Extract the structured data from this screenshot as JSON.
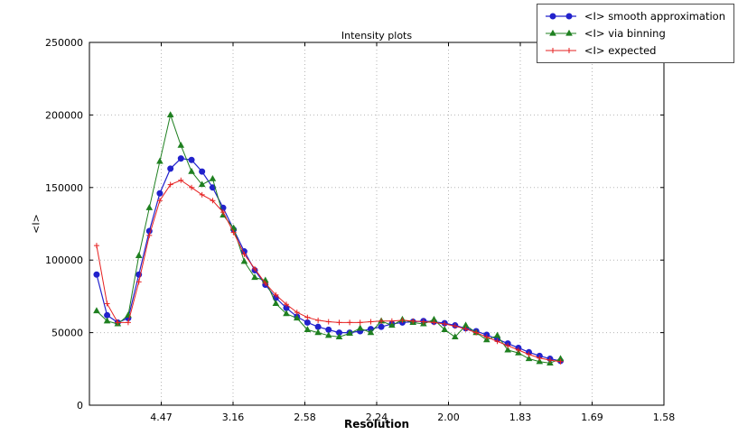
{
  "figure": {
    "title": "Intensity plots",
    "xlabel": "Resolution",
    "ylabel": "<I>"
  },
  "legend": {
    "entries": [
      {
        "label": "<I> smooth approximation"
      },
      {
        "label": "<I> via binning"
      },
      {
        "label": "<I> expected"
      }
    ]
  },
  "chart_data": {
    "type": "line",
    "title": "Intensity plots",
    "xlabel": "Resolution",
    "ylabel": "<I>",
    "grid": "dotted",
    "legend_position": "upper right, outside top of axes",
    "x_axis": {
      "note": "x is linear in 1/d^2; tick labels show resolution d in Angstrom",
      "range": [
        0,
        0.4
      ],
      "ticks": [
        {
          "pos": 0.05,
          "label": "4.47"
        },
        {
          "pos": 0.1,
          "label": "3.16"
        },
        {
          "pos": 0.15,
          "label": "2.58"
        },
        {
          "pos": 0.2,
          "label": "2.24"
        },
        {
          "pos": 0.25,
          "label": "2.00"
        },
        {
          "pos": 0.3,
          "label": "1.83"
        },
        {
          "pos": 0.35,
          "label": "1.69"
        },
        {
          "pos": 0.4,
          "label": "1.58"
        }
      ]
    },
    "y_axis": {
      "range": [
        0,
        250000
      ],
      "ticks": [
        {
          "value": 0,
          "label": "0"
        },
        {
          "value": 50000,
          "label": "50000"
        },
        {
          "value": 100000,
          "label": "100000"
        },
        {
          "value": 150000,
          "label": "150000"
        },
        {
          "value": 200000,
          "label": "200000"
        },
        {
          "value": 250000,
          "label": "250000"
        }
      ]
    },
    "x": [
      0.005,
      0.0123,
      0.0197,
      0.027,
      0.0344,
      0.0417,
      0.049,
      0.0564,
      0.0637,
      0.0711,
      0.0784,
      0.0858,
      0.0931,
      0.1004,
      0.1078,
      0.1151,
      0.1225,
      0.1298,
      0.1371,
      0.1445,
      0.1518,
      0.1592,
      0.1665,
      0.1739,
      0.1812,
      0.1885,
      0.1959,
      0.2032,
      0.2106,
      0.2179,
      0.2253,
      0.2326,
      0.2399,
      0.2473,
      0.2546,
      0.262,
      0.2693,
      0.2766,
      0.284,
      0.2913,
      0.2987,
      0.306,
      0.3134,
      0.3207,
      0.328
    ],
    "series": [
      {
        "name": "<I> smooth approximation",
        "color": "#2222cc",
        "marker": "circle",
        "line_width": 1.2,
        "values": [
          90000,
          62000,
          57000,
          60000,
          90000,
          120000,
          146000,
          163000,
          170000,
          169000,
          161000,
          150000,
          136000,
          121000,
          106000,
          93000,
          83000,
          74000,
          67000,
          61000,
          57000,
          54000,
          52000,
          50000,
          50000,
          51000,
          52500,
          54000,
          56000,
          57000,
          57500,
          58000,
          57500,
          56500,
          55000,
          53000,
          51000,
          48500,
          45500,
          42500,
          39500,
          36500,
          34000,
          32000,
          30500
        ]
      },
      {
        "name": "<I> via binning",
        "color": "#1f8020",
        "marker": "triangle",
        "line_width": 1,
        "values": [
          65000,
          58000,
          56000,
          62000,
          103000,
          136000,
          168000,
          200000,
          179000,
          161000,
          152000,
          156000,
          131000,
          122000,
          99000,
          88000,
          86000,
          70000,
          63000,
          60000,
          52000,
          50000,
          48000,
          47000,
          49500,
          53000,
          50000,
          58000,
          55000,
          59000,
          57000,
          56000,
          59000,
          52000,
          47000,
          55000,
          50000,
          45000,
          48000,
          38000,
          36000,
          32000,
          30000,
          29000,
          32000
        ]
      },
      {
        "name": "<I> expected",
        "color": "#e62020",
        "marker": "plus",
        "line_width": 1,
        "values": [
          110000,
          70000,
          57000,
          57000,
          85000,
          117000,
          141000,
          152000,
          155000,
          150000,
          145000,
          141000,
          133000,
          119000,
          104000,
          94000,
          84000,
          76000,
          69500,
          64000,
          60500,
          58500,
          57500,
          57000,
          57000,
          57000,
          57500,
          58000,
          58000,
          58500,
          58000,
          57500,
          57000,
          56000,
          54500,
          52500,
          50000,
          47000,
          44000,
          41000,
          38000,
          35000,
          32500,
          31000,
          30000
        ]
      }
    ]
  }
}
